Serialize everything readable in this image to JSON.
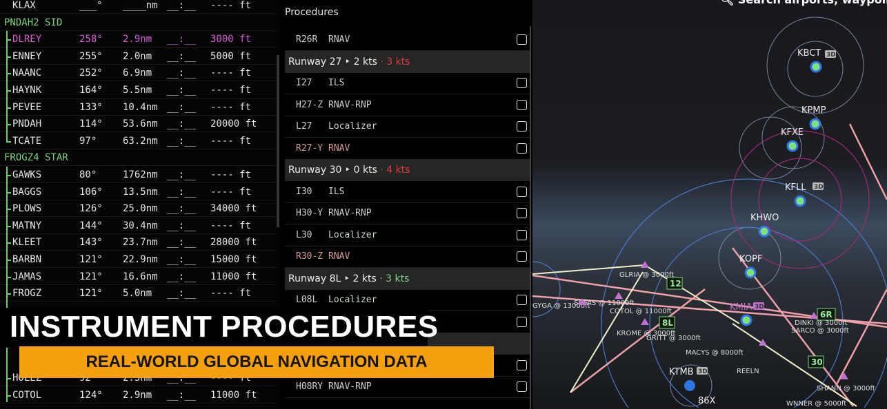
{
  "flightplan": {
    "origin": {
      "name": "KLAX",
      "deg": "___°",
      "dist": "____nm",
      "time": "__:__",
      "alt": "---- ft"
    },
    "sid": {
      "label": "PNDAH2 SID",
      "fixes": [
        {
          "name": "DLREY",
          "deg": "258°",
          "dist": "2.9nm",
          "time": "__:__",
          "alt": "3000 ft",
          "active": true
        },
        {
          "name": "ENNEY",
          "deg": "255°",
          "dist": "2.0nm",
          "time": "__:__",
          "alt": "5000 ft"
        },
        {
          "name": "NAANC",
          "deg": "252°",
          "dist": "6.9nm",
          "time": "__:__",
          "alt": "---- ft"
        },
        {
          "name": "HAYNK",
          "deg": "164°",
          "dist": "5.5nm",
          "time": "__:__",
          "alt": "---- ft"
        },
        {
          "name": "PEVEE",
          "deg": "133°",
          "dist": "10.4nm",
          "time": "__:__",
          "alt": "---- ft"
        },
        {
          "name": "PNDAH",
          "deg": "114°",
          "dist": "53.6nm",
          "time": "__:__",
          "alt": "20000 ft"
        },
        {
          "name": "TCATE",
          "deg": "97°",
          "dist": "63.2nm",
          "time": "__:__",
          "alt": "---- ft"
        }
      ]
    },
    "star": {
      "label": "FROGZ4 STAR",
      "fixes": [
        {
          "name": "GAWKS",
          "deg": "80°",
          "dist": "1762nm",
          "time": "__:__",
          "alt": "---- ft"
        },
        {
          "name": "BAGGS",
          "deg": "106°",
          "dist": "13.5nm",
          "time": "__:__",
          "alt": "---- ft"
        },
        {
          "name": "PLOWS",
          "deg": "126°",
          "dist": "25.0nm",
          "time": "__:__",
          "alt": "34000 ft"
        },
        {
          "name": "MATNY",
          "deg": "144°",
          "dist": "30.4nm",
          "time": "__:__",
          "alt": "---- ft"
        },
        {
          "name": "KLEET",
          "deg": "143°",
          "dist": "23.7nm",
          "time": "__:__",
          "alt": "28000 ft"
        },
        {
          "name": "BARBN",
          "deg": "121°",
          "dist": "22.9nm",
          "time": "__:__",
          "alt": "15000 ft"
        },
        {
          "name": "JAMAS",
          "deg": "121°",
          "dist": "16.6nm",
          "time": "__:__",
          "alt": "11000 ft"
        },
        {
          "name": "FROGZ",
          "deg": "121°",
          "dist": "5.0nm",
          "time": "__:__",
          "alt": "---- ft"
        }
      ],
      "more": [
        {
          "name": "HOLEZ",
          "deg": "92°",
          "dist": "2.5nm",
          "time": "__:__",
          "alt": "---- ft"
        },
        {
          "name": "COTOL",
          "deg": "124°",
          "dist": "2.9nm",
          "time": "__:__",
          "alt": "11000 ft"
        }
      ]
    }
  },
  "procedures": {
    "title": "Procedures",
    "items": [
      {
        "kind": "row",
        "id": "R26R",
        "type": "RNAV"
      },
      {
        "kind": "head",
        "runway": "Runway 27",
        "wind": "2 kts",
        "xwind": "3 kts",
        "xwind_color": "#e23a3a"
      },
      {
        "kind": "row",
        "id": "I27",
        "type": "ILS"
      },
      {
        "kind": "row",
        "id": "H27-Z",
        "type": "RNAV-RNP"
      },
      {
        "kind": "row",
        "id": "L27",
        "type": "Localizer"
      },
      {
        "kind": "row",
        "id": "R27-Y",
        "type": "RNAV",
        "red": true
      },
      {
        "kind": "head",
        "runway": "Runway 30",
        "wind": "0 kts",
        "xwind": "4 kts",
        "xwind_color": "#e23a3a"
      },
      {
        "kind": "row",
        "id": "I30",
        "type": "ILS"
      },
      {
        "kind": "row",
        "id": "H30-Y",
        "type": "RNAV-RNP"
      },
      {
        "kind": "row",
        "id": "L30",
        "type": "Localizer"
      },
      {
        "kind": "row",
        "id": "R30-Z",
        "type": "RNAV",
        "red": true
      },
      {
        "kind": "head",
        "runway": "Runway 8L",
        "wind": "2 kts",
        "xwind": "3 kts",
        "xwind_color": "#7fd47f"
      },
      {
        "kind": "row",
        "id": "L08L",
        "type": "Localizer"
      },
      {
        "kind": "row",
        "id": "",
        "type": ""
      },
      {
        "kind": "gap"
      },
      {
        "kind": "row",
        "id": "",
        "type": ""
      },
      {
        "kind": "row",
        "id": "H08RY",
        "type": "RNAV-RNP"
      }
    ]
  },
  "map": {
    "search_placeholder": "Search airports, waypoints",
    "airports": [
      "KBCT",
      "KPMP",
      "KFXE",
      "KFLL",
      "KHWO",
      "KOPF",
      "KMIA",
      "KTMB"
    ],
    "badge_3d": "3D",
    "waypoints": [
      "GLRIA @ 3000ft",
      "SOFAS @ 11000ft",
      "COTOL @ 11000ft",
      "KROME @ 3000ft",
      "GRITT @ 3000ft",
      "MACYS @ 8000ft",
      "REELN",
      "SARCO @ 3000ft",
      "DINKI @ 3000ft",
      "SHANN @ 3000ft",
      "WNNER @ 5000ft",
      "GYGA @ 13000ft"
    ],
    "runways": [
      "12",
      "8L",
      "6R",
      "30"
    ],
    "navaid": "86X"
  },
  "overlay": {
    "title": "INSTRUMENT PROCEDURES",
    "subtitle": "REAL-WORLD GLOBAL NAVIGATION DATA",
    "accent": "#f5a00e"
  }
}
